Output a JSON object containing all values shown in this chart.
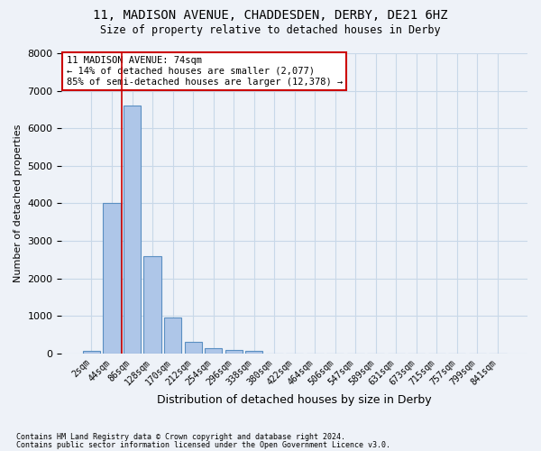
{
  "title": "11, MADISON AVENUE, CHADDESDEN, DERBY, DE21 6HZ",
  "subtitle": "Size of property relative to detached houses in Derby",
  "xlabel": "Distribution of detached houses by size in Derby",
  "ylabel": "Number of detached properties",
  "bar_values": [
    75,
    4000,
    6600,
    2600,
    950,
    300,
    130,
    90,
    75,
    0,
    0,
    0,
    0,
    0,
    0,
    0,
    0,
    0,
    0,
    0,
    0
  ],
  "bar_labels": [
    "2sqm",
    "44sqm",
    "86sqm",
    "128sqm",
    "170sqm",
    "212sqm",
    "254sqm",
    "296sqm",
    "338sqm",
    "380sqm",
    "422sqm",
    "464sqm",
    "506sqm",
    "547sqm",
    "589sqm",
    "631sqm",
    "673sqm",
    "715sqm",
    "757sqm",
    "799sqm",
    "841sqm"
  ],
  "bar_color": "#aec6e8",
  "bar_edge_color": "#5a8fc2",
  "grid_color": "#c8d8e8",
  "vline_x": 1.5,
  "vline_color": "#cc0000",
  "annotation_text": "11 MADISON AVENUE: 74sqm\n← 14% of detached houses are smaller (2,077)\n85% of semi-detached houses are larger (12,378) →",
  "annotation_box_color": "#ffffff",
  "annotation_box_edge": "#cc0000",
  "ylim": [
    0,
    8000
  ],
  "yticks": [
    0,
    1000,
    2000,
    3000,
    4000,
    5000,
    6000,
    7000,
    8000
  ],
  "footnote1": "Contains HM Land Registry data © Crown copyright and database right 2024.",
  "footnote2": "Contains public sector information licensed under the Open Government Licence v3.0.",
  "bg_color": "#eef2f8"
}
